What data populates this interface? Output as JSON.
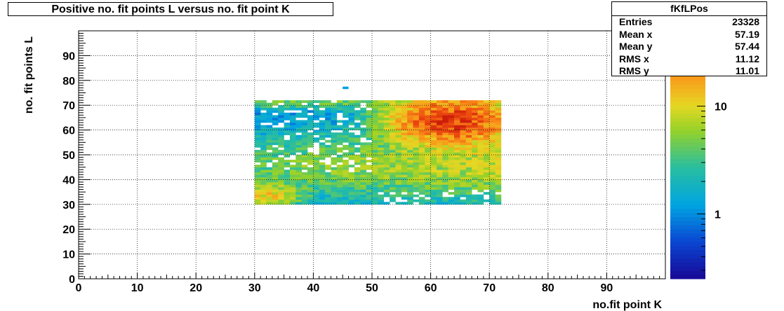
{
  "title": "Positive no. fit points L versus no. fit point K",
  "stats": {
    "name": "fKfLPos",
    "rows": [
      {
        "label": "Entries",
        "value": "23328"
      },
      {
        "label": "Mean x",
        "value": "57.19"
      },
      {
        "label": "Mean y",
        "value": "57.44"
      },
      {
        "label": "RMS x",
        "value": "11.12"
      },
      {
        "label": "RMS y",
        "value": "11.01"
      }
    ]
  },
  "chart_data": {
    "type": "heatmap",
    "title": "Positive no. fit points L versus no. fit point K",
    "xlabel": "no.fit point K",
    "ylabel": "no. fit points  L",
    "xlim": [
      0,
      100
    ],
    "ylim": [
      0,
      100
    ],
    "x_ticks": [
      0,
      10,
      20,
      30,
      40,
      50,
      60,
      70,
      80,
      90
    ],
    "y_ticks": [
      0,
      10,
      20,
      30,
      40,
      50,
      60,
      70,
      80,
      90
    ],
    "grid": true,
    "colorbar": {
      "scale": "log",
      "ticks": [
        {
          "value": 1,
          "label": "1"
        },
        {
          "value": 10,
          "label": "10"
        }
      ],
      "range": [
        0.25,
        50
      ]
    },
    "populated_region": {
      "x": [
        30,
        72
      ],
      "y": [
        30,
        72
      ]
    },
    "peak": {
      "x": 63,
      "y": 63
    },
    "entries": 23328
  }
}
